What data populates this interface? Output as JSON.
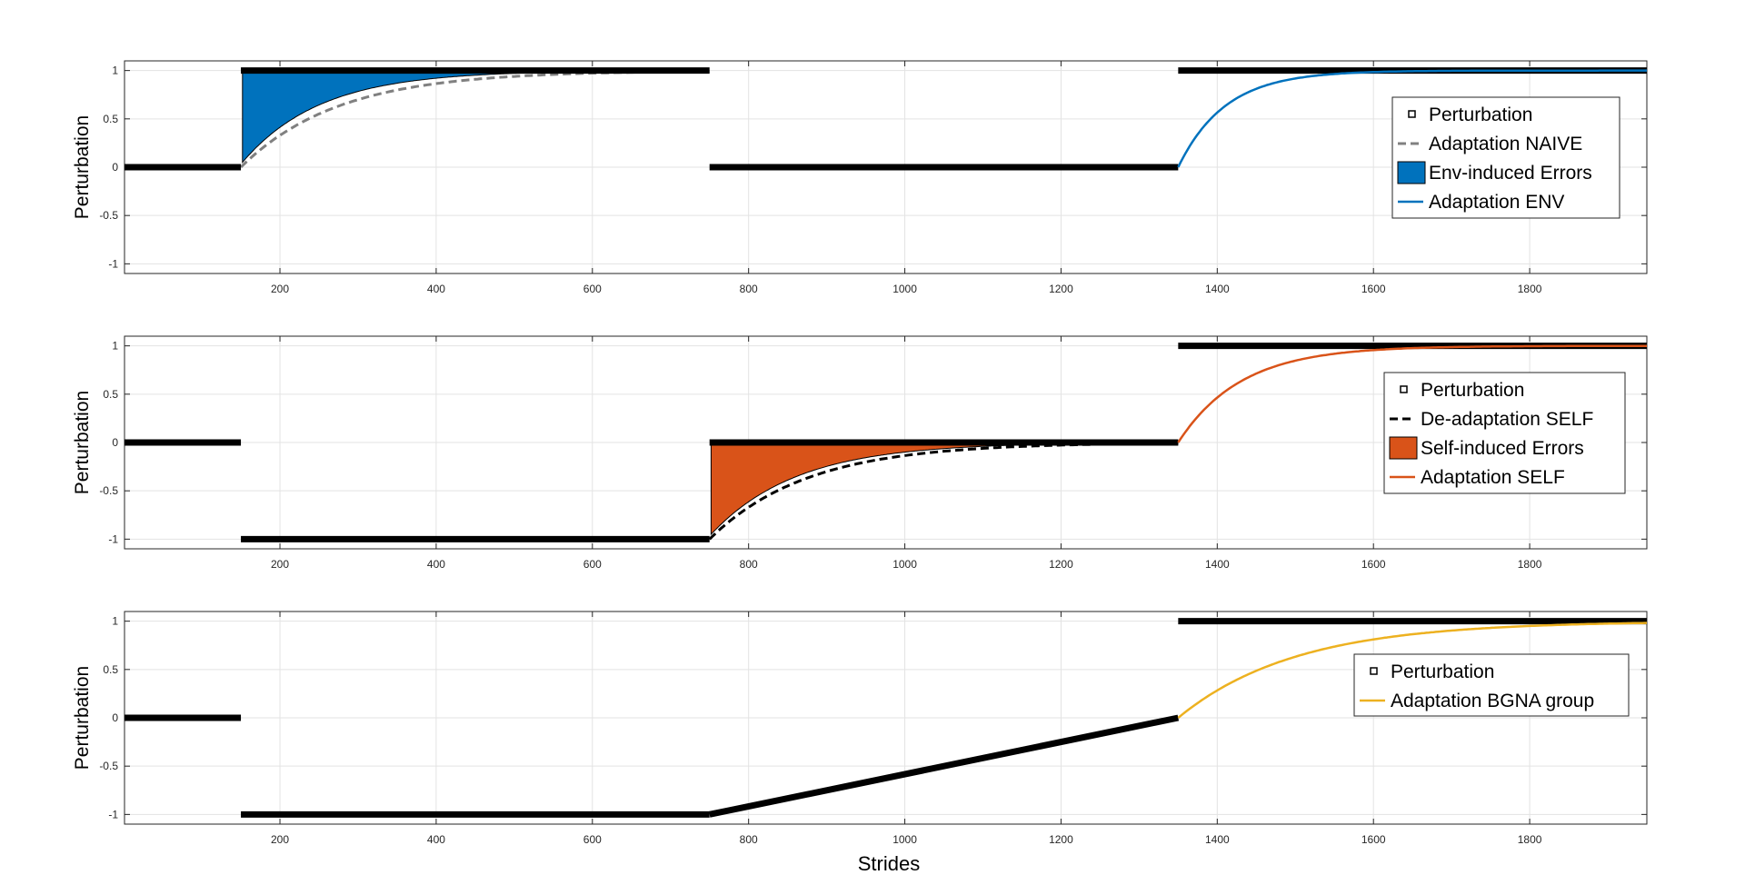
{
  "figure_xlabel": "Strides",
  "chart_data": [
    {
      "type": "line",
      "ylabel": "Perturbation",
      "xlim": [
        1,
        1950
      ],
      "ylim": [
        -1.1,
        1.1
      ],
      "xticks": [
        200,
        400,
        600,
        800,
        1000,
        1200,
        1400,
        1600,
        1800
      ],
      "yticks": [
        1,
        0.5,
        0,
        -0.5,
        -1
      ],
      "grid": true,
      "legend_position": "right",
      "perturbation": [
        [
          1,
          150,
          0,
          0
        ],
        [
          150,
          750,
          1,
          1
        ],
        [
          750,
          1350,
          0,
          0
        ],
        [
          1350,
          1950,
          1,
          1
        ]
      ],
      "adaptation": {
        "name": "Adaptation NAIVE",
        "x_start": 150,
        "x_end": 750,
        "y_start": 0,
        "y_end": 1,
        "tau": 125,
        "color": "#808080",
        "dashed": true
      },
      "shaded_error": {
        "name": "Env-induced Errors",
        "x_start": 152,
        "x_end": 550,
        "y_start": 0.05,
        "y_end": 1,
        "tau": 100,
        "boundary": 1,
        "color": "#0072BD"
      },
      "curve": {
        "name": "Adaptation ENV",
        "x_start": 1350,
        "x_end": 1950,
        "y_start": 0,
        "y_end": 1,
        "tau": 60,
        "color": "#0072BD"
      },
      "legend": [
        "Perturbation",
        "Adaptation NAIVE",
        "Env-induced Errors",
        "Adaptation ENV"
      ]
    },
    {
      "type": "line",
      "ylabel": "Perturbation",
      "xlim": [
        1,
        1950
      ],
      "ylim": [
        -1.1,
        1.1
      ],
      "xticks": [
        200,
        400,
        600,
        800,
        1000,
        1200,
        1400,
        1600,
        1800
      ],
      "yticks": [
        1,
        0.5,
        0,
        -0.5,
        -1
      ],
      "grid": true,
      "legend_position": "right",
      "perturbation": [
        [
          1,
          150,
          0,
          0
        ],
        [
          150,
          750,
          -1,
          -1
        ],
        [
          750,
          1350,
          0,
          0
        ],
        [
          1350,
          1950,
          1,
          1
        ]
      ],
      "adaptation": {
        "name": "De-adaptation SELF",
        "x_start": 750,
        "x_end": 1350,
        "y_start": -1,
        "y_end": 0,
        "tau": 125,
        "color": "#000000",
        "dashed": true
      },
      "shaded_error": {
        "name": "Self-induced Errors",
        "x_start": 752,
        "x_end": 1150,
        "y_start": -0.95,
        "y_end": 0,
        "tau": 110,
        "boundary": 0,
        "color": "#D95319"
      },
      "curve": {
        "name": "Adaptation SELF",
        "x_start": 1350,
        "x_end": 1950,
        "y_start": 0,
        "y_end": 1,
        "tau": 80,
        "color": "#D95319"
      },
      "legend": [
        "Perturbation",
        "De-adaptation SELF",
        "Self-induced Errors",
        "Adaptation SELF"
      ]
    },
    {
      "type": "line",
      "ylabel": "Perturbation",
      "xlim": [
        1,
        1950
      ],
      "ylim": [
        -1.1,
        1.1
      ],
      "xticks": [
        200,
        400,
        600,
        800,
        1000,
        1200,
        1400,
        1600,
        1800
      ],
      "yticks": [
        1,
        0.5,
        0,
        -0.5,
        -1
      ],
      "grid": true,
      "legend_position": "right",
      "perturbation": [
        [
          1,
          150,
          0,
          0
        ],
        [
          150,
          750,
          -1,
          -1
        ],
        [
          750,
          1350,
          -1,
          0
        ],
        [
          1350,
          1950,
          1,
          1
        ]
      ],
      "curve": {
        "name": "Adaptation BGNA group",
        "x_start": 1350,
        "x_end": 1950,
        "y_start": 0,
        "y_end": 1,
        "tau": 150,
        "color": "#EDB120"
      },
      "legend": [
        "Perturbation",
        "Adaptation BGNA group"
      ]
    }
  ]
}
